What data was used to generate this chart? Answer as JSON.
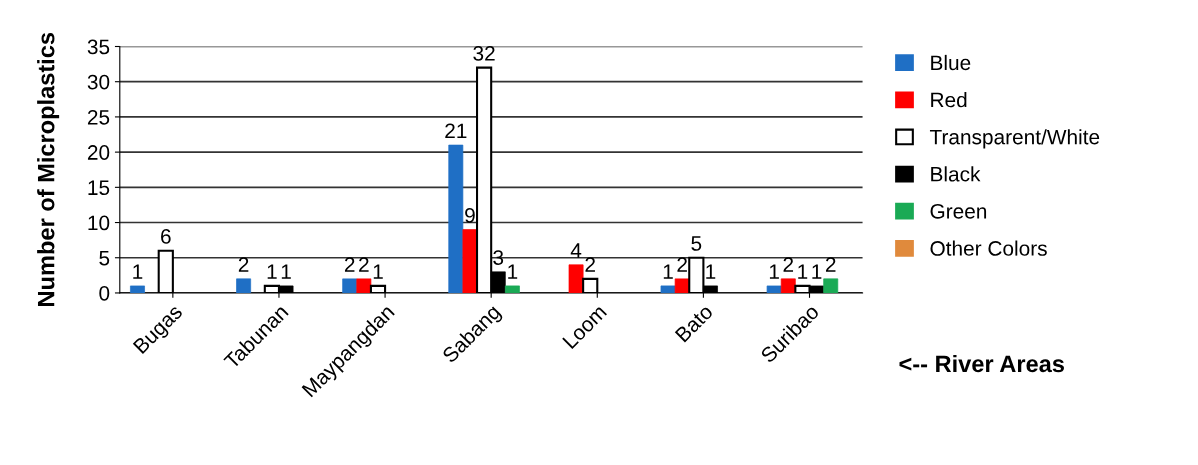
{
  "chart_data": {
    "type": "bar",
    "ylabel": "Number of Microplastics",
    "categories": [
      "Bugas",
      "Tabunan",
      "Maypangdan",
      "Sabang",
      "Loom",
      "Bato",
      "Suribao"
    ],
    "series": [
      {
        "name": "Blue",
        "color": "#1f6fc5",
        "values": [
          1,
          2,
          2,
          21,
          null,
          1,
          1
        ]
      },
      {
        "name": "Red",
        "color": "#ff0000",
        "values": [
          null,
          null,
          2,
          9,
          4,
          2,
          2
        ]
      },
      {
        "name": "Transparent/White",
        "color": "#ffffff",
        "values": [
          6,
          1,
          1,
          32,
          2,
          5,
          1
        ]
      },
      {
        "name": "Black",
        "color": "#000000",
        "values": [
          null,
          1,
          null,
          3,
          null,
          1,
          1
        ]
      },
      {
        "name": "Green",
        "color": "#1aaa55",
        "values": [
          null,
          null,
          null,
          1,
          null,
          null,
          2
        ]
      },
      {
        "name": "Other Colors",
        "color": "#e08a3c",
        "values": [
          null,
          null,
          null,
          null,
          null,
          null,
          null
        ]
      }
    ],
    "ylim": [
      0,
      35
    ],
    "yticks": [
      0,
      5,
      10,
      15,
      20,
      25,
      30,
      35
    ],
    "grid": "y",
    "legend": "right",
    "data_labels": true,
    "annotations": [
      "<-- River Areas"
    ]
  }
}
